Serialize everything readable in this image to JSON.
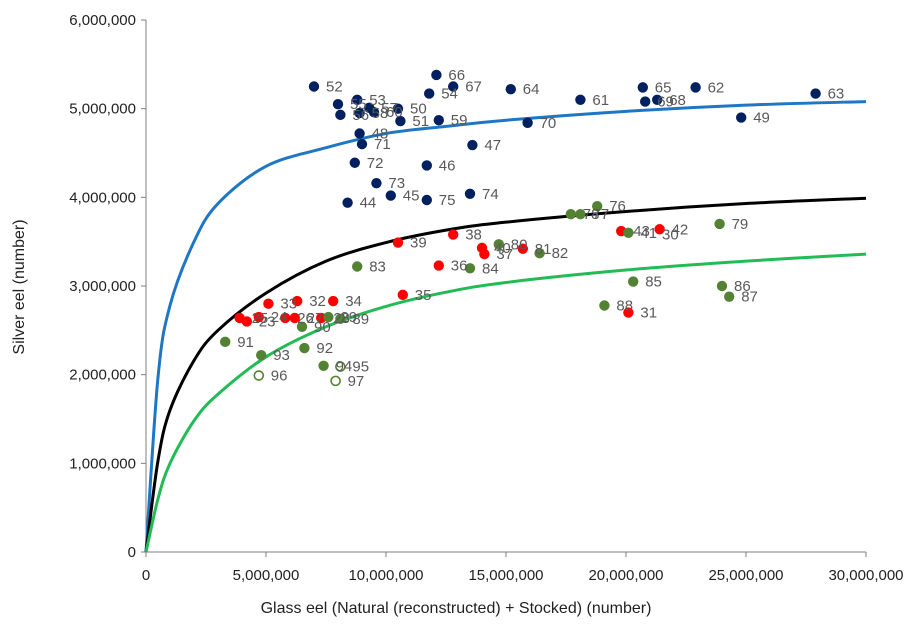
{
  "chart_data": {
    "type": "scatter",
    "title": "",
    "xlabel": "Glass eel (Natural (reconstructed) + Stocked) (number)",
    "ylabel": "Silver eel (number)",
    "xlim": [
      0,
      30000000
    ],
    "ylim": [
      0,
      6000000
    ],
    "x_ticks": [
      0,
      5000000,
      10000000,
      15000000,
      20000000,
      25000000,
      30000000
    ],
    "x_tick_labels": [
      "0",
      "5,000,000",
      "10,000,000",
      "15,000,000",
      "20,000,000",
      "25,000,000",
      "30,000,000"
    ],
    "y_ticks": [
      0,
      1000000,
      2000000,
      3000000,
      4000000,
      5000000,
      6000000
    ],
    "y_tick_labels": [
      "0",
      "1,000,000",
      "2,000,000",
      "3,000,000",
      "4,000,000",
      "5,000,000",
      "6,000,000"
    ],
    "grid": false,
    "curves": [
      {
        "color": "#1f77c4",
        "values": [
          [
            0,
            0
          ],
          [
            500000,
            1970000
          ],
          [
            1000000,
            2780000
          ],
          [
            2000000,
            3500000
          ],
          [
            3000000,
            3930000
          ],
          [
            5000000,
            4350000
          ],
          [
            7500000,
            4560000
          ],
          [
            10000000,
            4720000
          ],
          [
            12500000,
            4800000
          ],
          [
            15000000,
            4870000
          ],
          [
            20000000,
            4970000
          ],
          [
            25000000,
            5040000
          ],
          [
            30000000,
            5080000
          ]
        ]
      },
      {
        "color": "#000000",
        "values": [
          [
            0,
            0
          ],
          [
            500000,
            1030000
          ],
          [
            1000000,
            1600000
          ],
          [
            2000000,
            2160000
          ],
          [
            3000000,
            2500000
          ],
          [
            5000000,
            2920000
          ],
          [
            7500000,
            3280000
          ],
          [
            10000000,
            3490000
          ],
          [
            12500000,
            3630000
          ],
          [
            15000000,
            3720000
          ],
          [
            20000000,
            3840000
          ],
          [
            25000000,
            3930000
          ],
          [
            30000000,
            3990000
          ]
        ]
      },
      {
        "color": "#22bb55",
        "values": [
          [
            0,
            0
          ],
          [
            500000,
            600000
          ],
          [
            1000000,
            1000000
          ],
          [
            2000000,
            1480000
          ],
          [
            3000000,
            1780000
          ],
          [
            5000000,
            2200000
          ],
          [
            7500000,
            2540000
          ],
          [
            10000000,
            2770000
          ],
          [
            12500000,
            2930000
          ],
          [
            15000000,
            3040000
          ],
          [
            20000000,
            3180000
          ],
          [
            25000000,
            3280000
          ],
          [
            30000000,
            3360000
          ]
        ]
      }
    ],
    "series": [
      {
        "color": "#002060",
        "points": [
          {
            "x": 7000000,
            "y": 5250000,
            "label": "52"
          },
          {
            "x": 8800000,
            "y": 5100000,
            "label": "53"
          },
          {
            "x": 8000000,
            "y": 5050000,
            "label": "55"
          },
          {
            "x": 8100000,
            "y": 4930000,
            "label": "56"
          },
          {
            "x": 8900000,
            "y": 4950000,
            "label": "58"
          },
          {
            "x": 9300000,
            "y": 5010000,
            "label": "57"
          },
          {
            "x": 9500000,
            "y": 4960000,
            "label": "60"
          },
          {
            "x": 10500000,
            "y": 5000000,
            "label": "50"
          },
          {
            "x": 10600000,
            "y": 4860000,
            "label": "51"
          },
          {
            "x": 12200000,
            "y": 4870000,
            "label": "59"
          },
          {
            "x": 8900000,
            "y": 4720000,
            "label": "48"
          },
          {
            "x": 9000000,
            "y": 4600000,
            "label": "71"
          },
          {
            "x": 8700000,
            "y": 4390000,
            "label": "72"
          },
          {
            "x": 11700000,
            "y": 4360000,
            "label": "46"
          },
          {
            "x": 13600000,
            "y": 4590000,
            "label": "47"
          },
          {
            "x": 9600000,
            "y": 4160000,
            "label": "73"
          },
          {
            "x": 10200000,
            "y": 4020000,
            "label": "45"
          },
          {
            "x": 8400000,
            "y": 3940000,
            "label": "44"
          },
          {
            "x": 11700000,
            "y": 3970000,
            "label": "75"
          },
          {
            "x": 13500000,
            "y": 4040000,
            "label": "74"
          },
          {
            "x": 12100000,
            "y": 5380000,
            "label": "66"
          },
          {
            "x": 11800000,
            "y": 5170000,
            "label": "54"
          },
          {
            "x": 12800000,
            "y": 5250000,
            "label": "67"
          },
          {
            "x": 15200000,
            "y": 5220000,
            "label": "64"
          },
          {
            "x": 18100000,
            "y": 5100000,
            "label": "61"
          },
          {
            "x": 15900000,
            "y": 4840000,
            "label": "70"
          },
          {
            "x": 20700000,
            "y": 5240000,
            "label": "65"
          },
          {
            "x": 20800000,
            "y": 5080000,
            "label": "69"
          },
          {
            "x": 21300000,
            "y": 5100000,
            "label": "68"
          },
          {
            "x": 22900000,
            "y": 5240000,
            "label": "62"
          },
          {
            "x": 24800000,
            "y": 4900000,
            "label": "49"
          },
          {
            "x": 27900000,
            "y": 5170000,
            "label": "63"
          }
        ]
      },
      {
        "color": "#ff0000",
        "points": [
          {
            "x": 3900000,
            "y": 2640000,
            "label": "25"
          },
          {
            "x": 4200000,
            "y": 2600000,
            "label": "23"
          },
          {
            "x": 4700000,
            "y": 2650000,
            "label": "24"
          },
          {
            "x": 5100000,
            "y": 2800000,
            "label": "33"
          },
          {
            "x": 5800000,
            "y": 2640000,
            "label": "26"
          },
          {
            "x": 6200000,
            "y": 2640000,
            "label": "27"
          },
          {
            "x": 6300000,
            "y": 2830000,
            "label": "32"
          },
          {
            "x": 7300000,
            "y": 2640000,
            "label": "28"
          },
          {
            "x": 7800000,
            "y": 2830000,
            "label": "34"
          },
          {
            "x": 10700000,
            "y": 2900000,
            "label": "35"
          },
          {
            "x": 10500000,
            "y": 3490000,
            "label": "39"
          },
          {
            "x": 12200000,
            "y": 3230000,
            "label": "36"
          },
          {
            "x": 12800000,
            "y": 3580000,
            "label": "38"
          },
          {
            "x": 14000000,
            "y": 3430000,
            "label": "40"
          },
          {
            "x": 14100000,
            "y": 3360000,
            "label": "37"
          },
          {
            "x": 15700000,
            "y": 3420000,
            "label": "81"
          },
          {
            "x": 19800000,
            "y": 3620000,
            "label": "43"
          },
          {
            "x": 21400000,
            "y": 3640000,
            "label": "42"
          },
          {
            "x": 20100000,
            "y": 2700000,
            "label": "31"
          }
        ]
      },
      {
        "color": "#548235",
        "points": [
          {
            "x": 3300000,
            "y": 2370000,
            "label": "91"
          },
          {
            "x": 4800000,
            "y": 2220000,
            "label": "93"
          },
          {
            "x": 6600000,
            "y": 2300000,
            "label": "92"
          },
          {
            "x": 6500000,
            "y": 2540000,
            "label": "90"
          },
          {
            "x": 7400000,
            "y": 2100000,
            "label": "94"
          },
          {
            "x": 8100000,
            "y": 2630000,
            "label": "89"
          },
          {
            "x": 7600000,
            "y": 2650000,
            "label": "29"
          },
          {
            "x": 8800000,
            "y": 3220000,
            "label": "83"
          },
          {
            "x": 13500000,
            "y": 3200000,
            "label": "84"
          },
          {
            "x": 14700000,
            "y": 3470000,
            "label": "80"
          },
          {
            "x": 16400000,
            "y": 3370000,
            "label": "82"
          },
          {
            "x": 17700000,
            "y": 3810000,
            "label": "78"
          },
          {
            "x": 18100000,
            "y": 3810000,
            "label": "77"
          },
          {
            "x": 18800000,
            "y": 3900000,
            "label": "76"
          },
          {
            "x": 20100000,
            "y": 3600000,
            "label": "41"
          },
          {
            "x": 20300000,
            "y": 3050000,
            "label": "85"
          },
          {
            "x": 19100000,
            "y": 2780000,
            "label": "88"
          },
          {
            "x": 23900000,
            "y": 3700000,
            "label": "79"
          },
          {
            "x": 24000000,
            "y": 3000000,
            "label": "86"
          },
          {
            "x": 24300000,
            "y": 2880000,
            "label": "87"
          }
        ]
      },
      {
        "color": "#548235",
        "hollow": true,
        "points": [
          {
            "x": 4700000,
            "y": 1990000,
            "label": "96"
          },
          {
            "x": 7900000,
            "y": 1930000,
            "label": "97"
          },
          {
            "x": 8100000,
            "y": 2090000,
            "label": "95"
          }
        ]
      }
    ],
    "standalone_labels": [
      {
        "x": 21000000,
        "y": 3580000,
        "label": "30"
      }
    ]
  }
}
